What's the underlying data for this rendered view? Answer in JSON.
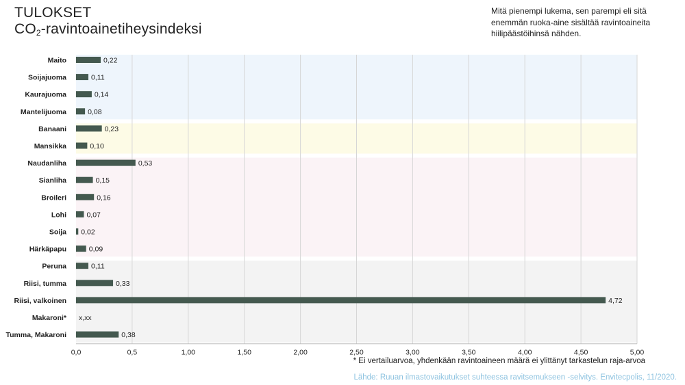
{
  "header": {
    "title_line1": "TULOKSET",
    "title_co": "CO",
    "title_sub": "2",
    "title_rest": "-ravintoainetiheysindeksi",
    "note": "Mitä pienempi lukema, sen parempi eli sitä enemmän ruoka-aine sisältää ravintoaineita hiilipäästöihinsä nähden."
  },
  "footer": {
    "footnote": "* Ei vertailuarvoa, yhdenkään ravintoaineen määrä ei ylittänyt tarkastelun raja-arvoa",
    "source": "Lähde: Ruuan ilmastovaikutukset suhteessa ravitsemukseen -selvitys. Envitecpolis, 11/2020."
  },
  "chart_data": {
    "type": "bar",
    "orientation": "horizontal",
    "categories": [
      "Maito",
      "Soijajuoma",
      "Kaurajuoma",
      "Mantelijuoma",
      "Banaani",
      "Mansikka",
      "Naudanliha",
      "Sianliha",
      "Broileri",
      "Lohi",
      "Soija",
      "Härkäpapu",
      "Peruna",
      "Riisi, tumma",
      "Riisi, valkoinen",
      "Makaroni*",
      "Tumma, Makaroni"
    ],
    "values": [
      0.22,
      0.11,
      0.14,
      0.08,
      0.23,
      0.1,
      0.53,
      0.15,
      0.16,
      0.07,
      0.02,
      0.09,
      0.11,
      0.33,
      4.72,
      null,
      0.38
    ],
    "data_labels": [
      "0,22",
      "0,11",
      "0,14",
      "0,08",
      "0,23",
      "0,10",
      "0,53",
      "0,15",
      "0,16",
      "0,07",
      "0,02",
      "0,09",
      "0,11",
      "0,33",
      "4,72",
      "x,xx",
      "0,38"
    ],
    "xlim": [
      0,
      5
    ],
    "xticks": [
      0,
      0.5,
      1,
      1.5,
      2,
      2.5,
      3,
      3.5,
      4,
      4.5,
      5
    ],
    "xtick_labels": [
      "0,0",
      "0,5",
      "1,00",
      "1,50",
      "2,00",
      "2,50",
      "3,00",
      "3,50",
      "4,00",
      "4,50",
      "5,00"
    ],
    "grid": "vertical",
    "bar_color": "#44594f",
    "groups": [
      {
        "start": 0,
        "end": 3,
        "color": "#eef5fc"
      },
      {
        "start": 4,
        "end": 5,
        "color": "#fdfbe6"
      },
      {
        "start": 6,
        "end": 11,
        "color": "#fbf3f6"
      },
      {
        "start": 12,
        "end": 16,
        "color": "#f3f3f3"
      }
    ]
  }
}
